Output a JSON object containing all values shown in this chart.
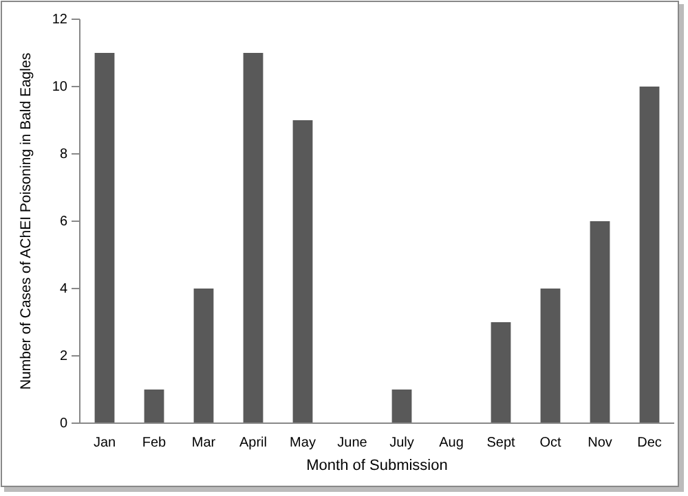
{
  "chart_data": {
    "type": "bar",
    "xlabel": "Month of Submission",
    "ylabel": "Number of Cases of AChEI Poisoning in Bald Eagles",
    "categories": [
      "Jan",
      "Feb",
      "Mar",
      "April",
      "May",
      "June",
      "July",
      "Aug",
      "Sept",
      "Oct",
      "Nov",
      "Dec"
    ],
    "values": [
      11,
      1,
      4,
      11,
      9,
      0,
      1,
      0,
      3,
      4,
      6,
      10
    ],
    "color": "#595959",
    "ylim": [
      0,
      12
    ],
    "yticks": [
      0,
      2,
      4,
      6,
      8,
      10,
      12
    ],
    "grid": false
  }
}
